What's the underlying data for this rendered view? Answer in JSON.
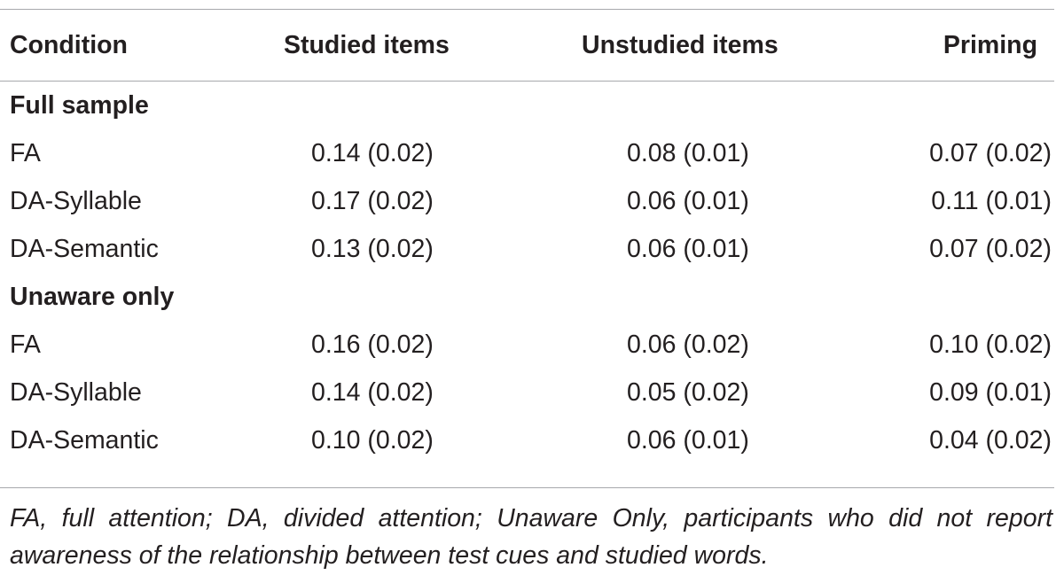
{
  "table": {
    "headers": {
      "condition": "Condition",
      "studied": "Studied items",
      "unstudied": "Unstudied items",
      "priming": "Priming"
    },
    "sections": [
      {
        "title": "Full sample",
        "rows": [
          {
            "condition": "FA",
            "studied": "0.14 (0.02)",
            "unstudied": "0.08 (0.01)",
            "priming": "0.07 (0.02)"
          },
          {
            "condition": "DA-Syllable",
            "studied": "0.17 (0.02)",
            "unstudied": "0.06 (0.01)",
            "priming": "0.11 (0.01)"
          },
          {
            "condition": "DA-Semantic",
            "studied": "0.13 (0.02)",
            "unstudied": "0.06 (0.01)",
            "priming": "0.07 (0.02)"
          }
        ]
      },
      {
        "title": "Unaware only",
        "rows": [
          {
            "condition": "FA",
            "studied": "0.16 (0.02)",
            "unstudied": "0.06 (0.02)",
            "priming": "0.10 (0.02)"
          },
          {
            "condition": "DA-Syllable",
            "studied": "0.14 (0.02)",
            "unstudied": "0.05 (0.02)",
            "priming": "0.09 (0.01)"
          },
          {
            "condition": "DA-Semantic",
            "studied": "0.10 (0.02)",
            "unstudied": "0.06 (0.01)",
            "priming": "0.04 (0.02)"
          }
        ]
      }
    ],
    "footnote": "FA, full attention; DA, divided attention; Unaware Only, participants who did not report awareness of the relationship between test cues and studied words."
  }
}
